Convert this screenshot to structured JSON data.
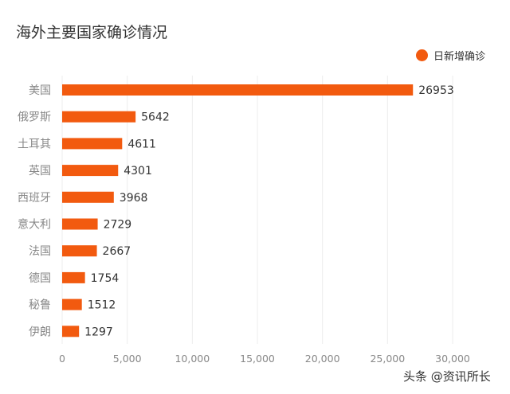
{
  "title": "海外主要国家确诊情况",
  "watermark": "头条 @资讯所长",
  "colors": {
    "bar": "#F25A0F",
    "grid": "#ECECEC",
    "text": "#333333",
    "tick": "#888888"
  },
  "chart_data": {
    "type": "bar",
    "orientation": "horizontal",
    "title": "海外主要国家确诊情况",
    "categories": [
      "美国",
      "俄罗斯",
      "土耳其",
      "英国",
      "西班牙",
      "意大利",
      "法国",
      "德国",
      "秘鲁",
      "伊朗"
    ],
    "series": [
      {
        "name": "日新增确诊",
        "values": [
          26953,
          5642,
          4611,
          4301,
          3968,
          2729,
          2667,
          1754,
          1512,
          1297
        ]
      }
    ],
    "xlim": [
      0,
      30000
    ],
    "xticks": [
      0,
      5000,
      10000,
      15000,
      20000,
      25000,
      30000
    ],
    "xtick_labels": [
      "0",
      "5,000",
      "10,000",
      "15,000",
      "20,000",
      "25,000",
      "30,000"
    ],
    "grid": "vertical",
    "legend_position": "top-right",
    "data_labels": true
  }
}
